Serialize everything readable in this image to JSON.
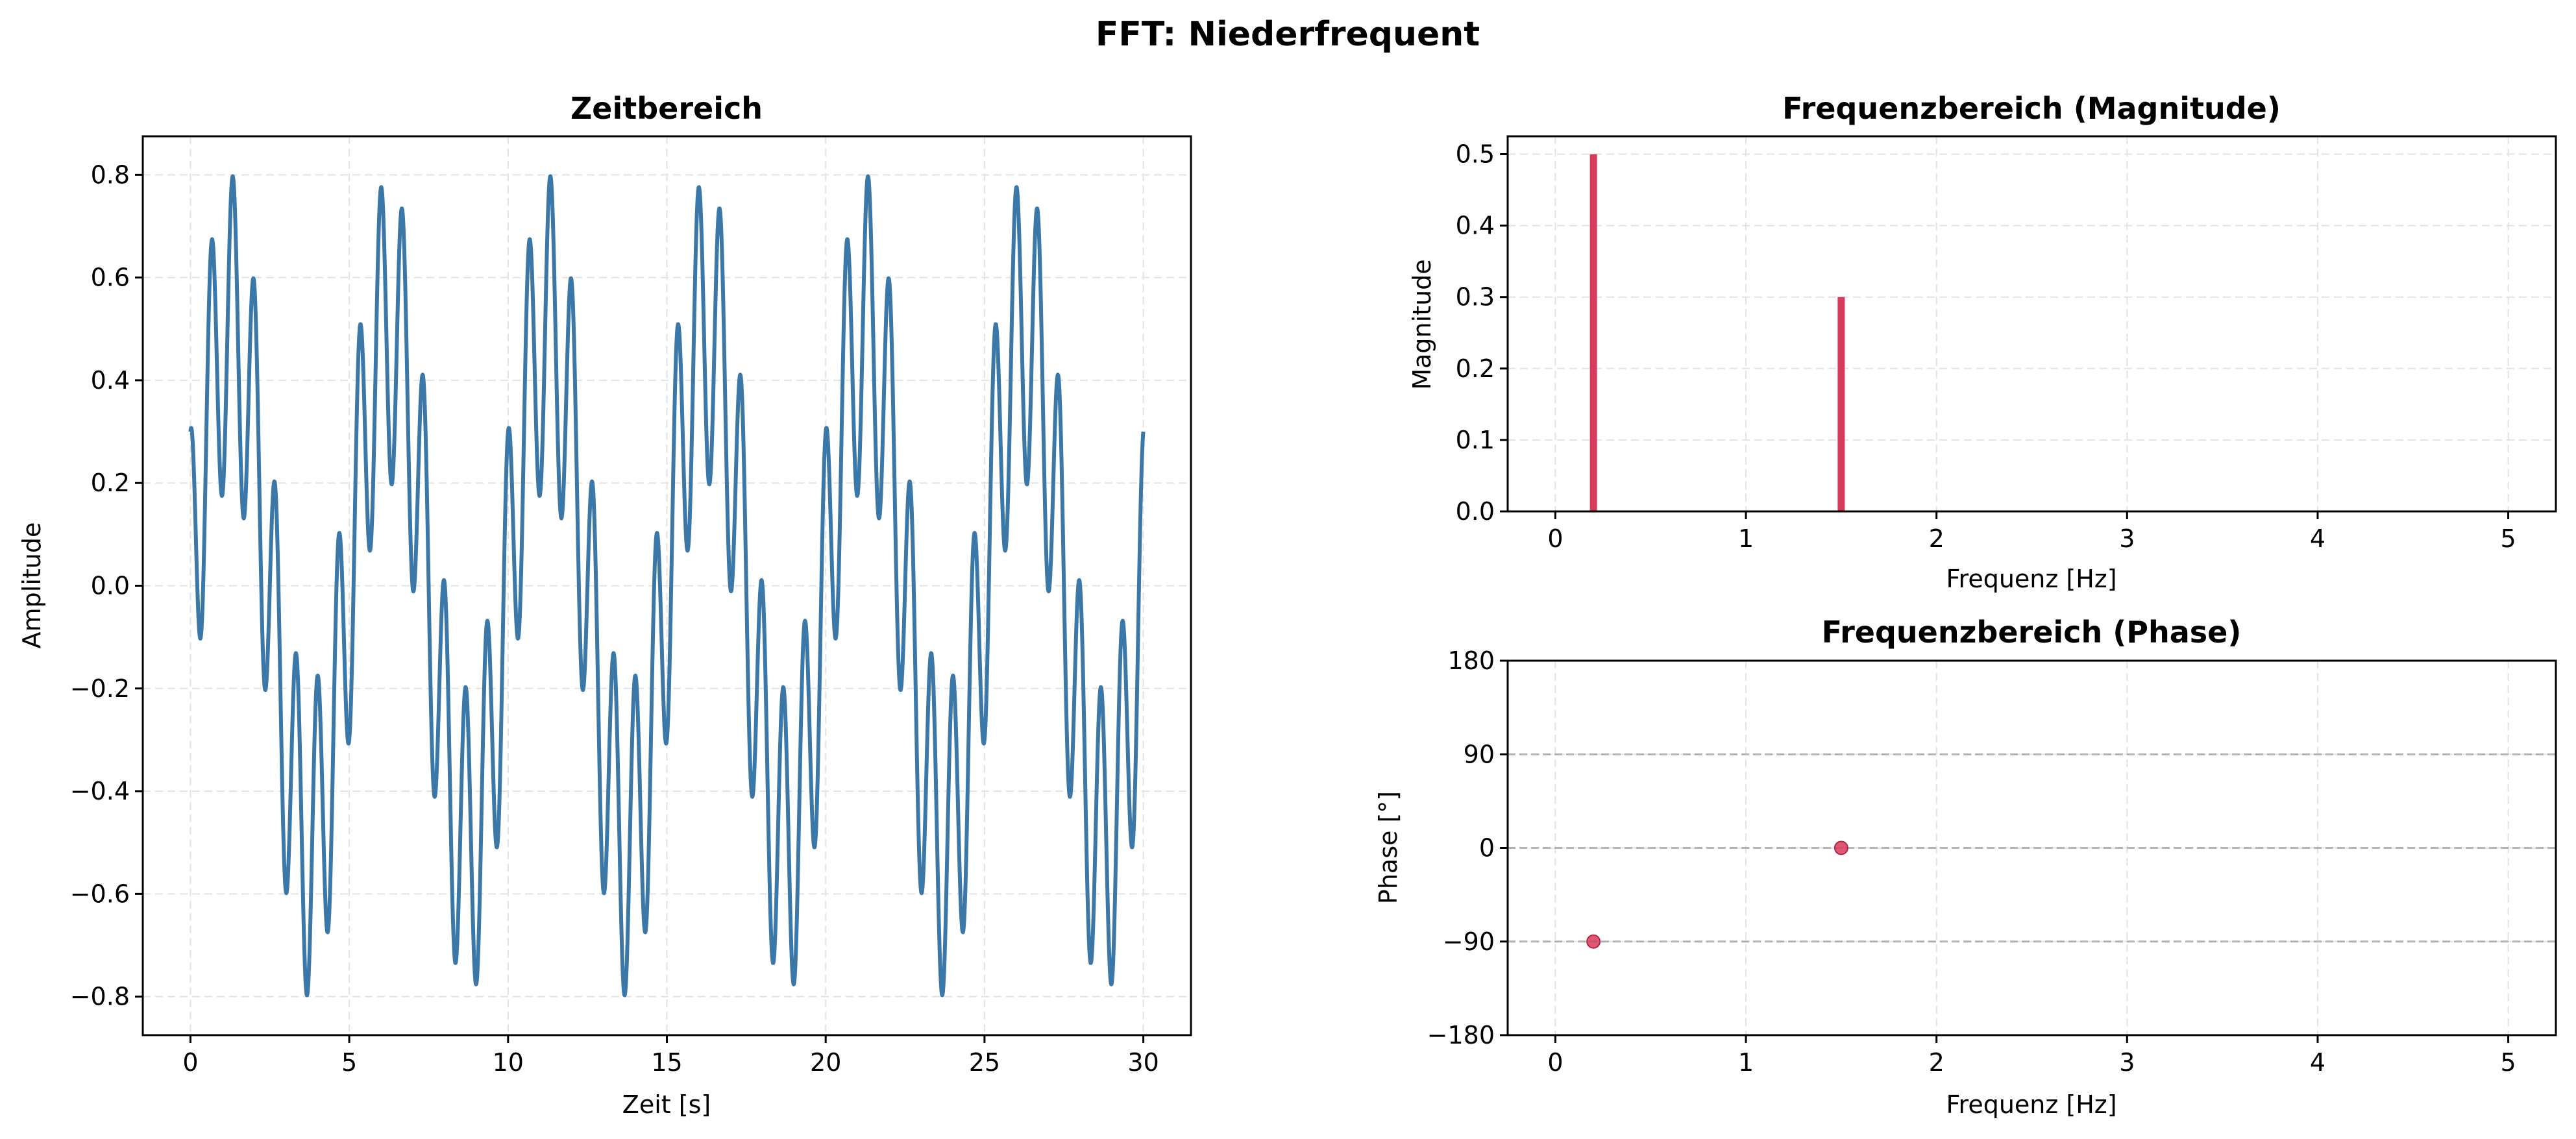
{
  "figure": {
    "title": "FFT: Niederfrequent"
  },
  "colors": {
    "time_line": "#3b78a8",
    "magnitude_bar": "#d83a5b",
    "phase_marker": "#d83a5b",
    "grid": "#e3e3e3",
    "reference_line": "#b3b3b3"
  },
  "chart_data": [
    {
      "id": "time",
      "type": "line",
      "title": "Zeitbereich",
      "xlabel": "Zeit [s]",
      "ylabel": "Amplitude",
      "xlim": [
        -1.5,
        31.5
      ],
      "ylim": [
        -0.875,
        0.875
      ],
      "xticks": [
        0,
        5,
        10,
        15,
        20,
        25,
        30
      ],
      "yticks": [
        -0.8,
        -0.6,
        -0.4,
        -0.2,
        0.0,
        0.2,
        0.4,
        0.6,
        0.8
      ],
      "ytick_labels": [
        "−0.8",
        "−0.6",
        "−0.4",
        "−0.2",
        "0.0",
        "0.2",
        "0.4",
        "0.6",
        "0.8"
      ],
      "grid": true,
      "series": [
        {
          "components": [
            {
              "amplitude": 0.5,
              "frequency_hz": 0.2,
              "phase_deg": -90
            },
            {
              "amplitude": 0.3,
              "frequency_hz": 1.5,
              "phase_deg": 0
            }
          ],
          "x_range": [
            0,
            30
          ]
        }
      ]
    },
    {
      "id": "magnitude",
      "type": "bar",
      "title": "Frequenzbereich (Magnitude)",
      "xlabel": "Frequenz [Hz]",
      "ylabel": "Magnitude",
      "xlim": [
        -0.25,
        5.25
      ],
      "ylim": [
        0,
        0.525
      ],
      "xticks": [
        0,
        1,
        2,
        3,
        4,
        5
      ],
      "yticks": [
        0.0,
        0.1,
        0.2,
        0.3,
        0.4,
        0.5
      ],
      "ytick_labels": [
        "0.0",
        "0.1",
        "0.2",
        "0.3",
        "0.4",
        "0.5"
      ],
      "grid": true,
      "x": [
        0.2,
        1.5
      ],
      "values": [
        0.5,
        0.3
      ]
    },
    {
      "id": "phase",
      "type": "scatter",
      "title": "Frequenzbereich (Phase)",
      "xlabel": "Frequenz [Hz]",
      "ylabel": "Phase [°]",
      "xlim": [
        -0.25,
        5.25
      ],
      "ylim": [
        -180,
        180
      ],
      "xticks": [
        0,
        1,
        2,
        3,
        4,
        5
      ],
      "yticks": [
        -180,
        -90,
        0,
        90,
        180
      ],
      "ytick_labels": [
        "−180",
        "−90",
        "0",
        "90",
        "180"
      ],
      "grid": true,
      "reference_lines_y": [
        -90,
        0,
        90
      ],
      "x": [
        0.2,
        1.5
      ],
      "y": [
        -90,
        0
      ]
    }
  ]
}
